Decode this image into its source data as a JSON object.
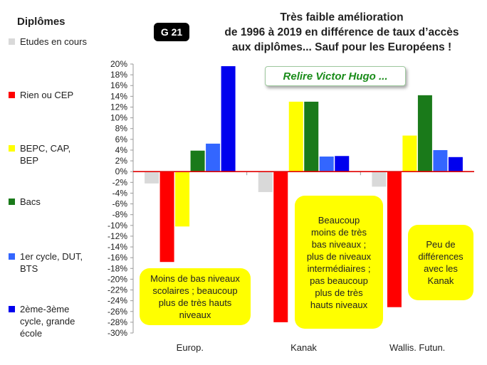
{
  "badge": "G 21",
  "title_lines": [
    "Très faible amélioration",
    "de 1996 à 2019 en différence de taux d’accès",
    "aux diplômes... Sauf pour les Européens !"
  ],
  "relire": "Relire Victor Hugo ...",
  "legend": {
    "title": "Diplômes",
    "items": [
      {
        "label": "Etudes en cours",
        "color": "#d9d9d9"
      },
      {
        "label": "Rien ou CEP",
        "color": "#ff0000"
      },
      {
        "label": "BEPC, CAP, BEP",
        "color": "#ffff00"
      },
      {
        "label": "Bacs",
        "color": "#1a7a1a"
      },
      {
        "label": "1er cycle, DUT, BTS",
        "color": "#3366ff"
      },
      {
        "label": "2ème-3ème cycle, grande école",
        "color": "#0000ee"
      }
    ]
  },
  "notes": [
    {
      "lines": [
        "Moins de bas niveaux",
        "scolaires ; beaucoup",
        "plus de très hauts",
        "niveaux"
      ]
    },
    {
      "lines": [
        "Beaucoup",
        "moins de très",
        "bas niveaux ;",
        "plus de niveaux",
        "intermédiaires ;",
        "pas beaucoup",
        "plus de très",
        "hauts niveaux"
      ]
    },
    {
      "lines": [
        "Peu de",
        "différences",
        "avec les",
        "Kanak"
      ]
    }
  ],
  "chart_data": {
    "type": "bar",
    "categories": [
      "Europ.",
      "Kanak",
      "Wallis. Futun."
    ],
    "series": [
      {
        "name": "Etudes en cours",
        "color": "#d9d9d9",
        "values": [
          -2.2,
          -3.8,
          -2.8
        ]
      },
      {
        "name": "Rien ou CEP",
        "color": "#ff0000",
        "values": [
          -16.8,
          -28.0,
          -25.2
        ]
      },
      {
        "name": "BEPC, CAP, BEP",
        "color": "#ffff00",
        "values": [
          -10.2,
          13.0,
          6.7
        ]
      },
      {
        "name": "Bacs",
        "color": "#1a7a1a",
        "values": [
          3.9,
          13.0,
          14.2
        ]
      },
      {
        "name": "1er cycle, DUT, BTS",
        "color": "#3366ff",
        "values": [
          5.2,
          2.8,
          4.0
        ]
      },
      {
        "name": "2ème-3ème cycle, grande école",
        "color": "#0000ee",
        "values": [
          19.6,
          2.9,
          2.7
        ]
      }
    ],
    "ylim": [
      -30,
      20
    ],
    "yticks": [
      "20%",
      "18%",
      "16%",
      "14%",
      "12%",
      "10%",
      "8%",
      "6%",
      "4%",
      "2%",
      "0%",
      "-2%",
      "-4%",
      "-6%",
      "-8%",
      "-10%",
      "-12%",
      "-14%",
      "-16%",
      "-18%",
      "-20%",
      "-22%",
      "-24%",
      "-26%",
      "-28%",
      "-30%"
    ],
    "grid": false,
    "legend_position": "left"
  }
}
